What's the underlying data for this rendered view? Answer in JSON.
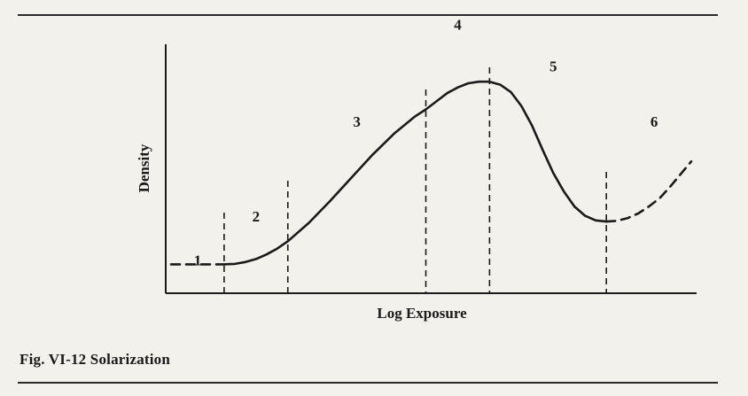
{
  "caption": "Fig. VI-12 Solarization",
  "chart_data": {
    "type": "line",
    "title": "",
    "xlabel": "Log Exposure",
    "ylabel": "Density",
    "xlim": [
      0,
      100
    ],
    "ylim": [
      0,
      100
    ],
    "grid": false,
    "legend": "none",
    "region_boundaries": [
      11,
      23,
      49,
      61,
      83
    ],
    "region_labels": [
      {
        "label": "1",
        "x": 6,
        "y": 12
      },
      {
        "label": "2",
        "x": 17,
        "y": 31
      },
      {
        "label": "3",
        "x": 36,
        "y": 72
      },
      {
        "label": "4",
        "x": 55,
        "y": 114
      },
      {
        "label": "5",
        "x": 73,
        "y": 96
      },
      {
        "label": "6",
        "x": 92,
        "y": 72
      }
    ],
    "series": [
      {
        "style": "dashed",
        "x": [
          1,
          4,
          7,
          9,
          11
        ],
        "y": [
          12.5,
          12.5,
          12.5,
          12.5,
          12.5
        ]
      },
      {
        "style": "solid",
        "x": [
          11,
          13,
          15,
          17,
          19,
          21,
          23,
          27,
          31,
          35,
          39,
          43,
          47,
          49,
          51,
          53,
          55,
          57,
          59,
          61,
          63,
          65,
          67,
          69,
          71,
          73,
          75,
          77,
          79,
          81,
          83
        ],
        "y": [
          12.5,
          12.7,
          13.5,
          14.8,
          16.8,
          19.3,
          22.5,
          30.5,
          40,
          50,
          60,
          69,
          76.5,
          79.5,
          83,
          86.5,
          89,
          90.8,
          91.5,
          91.5,
          90.2,
          87,
          81,
          72.5,
          62,
          52,
          44,
          37.5,
          33.5,
          31.5,
          31
        ]
      },
      {
        "style": "dashed",
        "x": [
          83,
          85,
          87,
          89,
          91,
          93,
          95,
          97,
          99
        ],
        "y": [
          31,
          31.3,
          32.5,
          34.5,
          37.5,
          41,
          46,
          51.5,
          57
        ]
      }
    ]
  }
}
